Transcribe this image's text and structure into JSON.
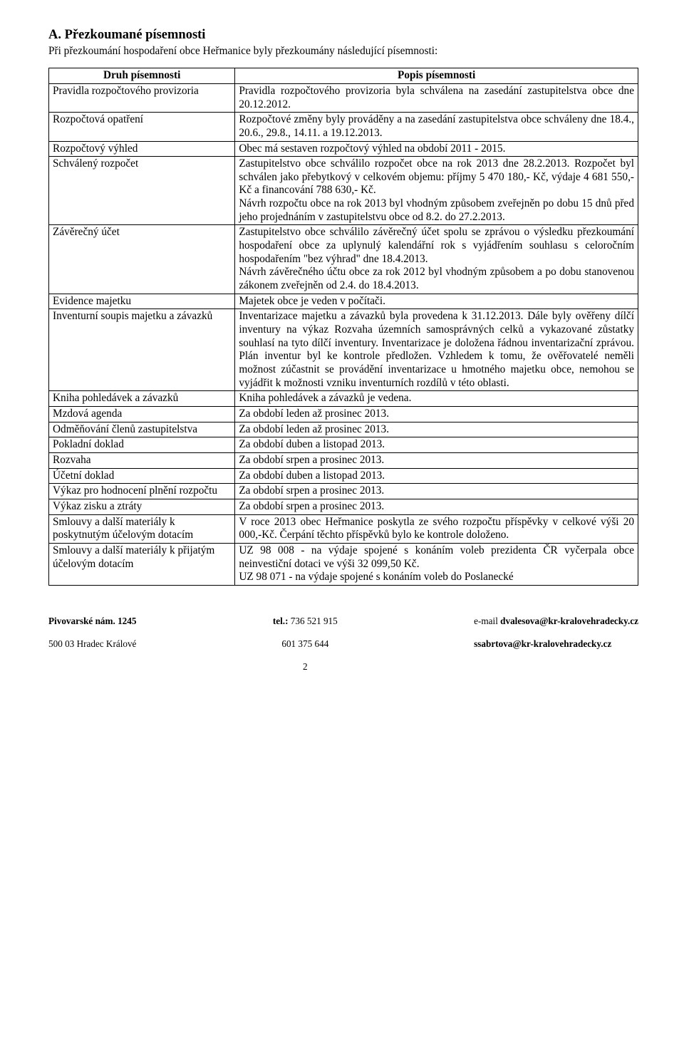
{
  "heading": "A. Přezkoumané písemnosti",
  "intro": "Při přezkoumání hospodaření obce Heřmanice  byly přezkoumány následující písemnosti:",
  "table": {
    "header": {
      "left": "Druh písemnosti",
      "right": "Popis písemnosti"
    },
    "rows": [
      {
        "left": "Pravidla rozpočtového provizoria",
        "right": "Pravidla rozpočtového provizoria byla schválena na zasedání zastupitelstva obce dne 20.12.2012.",
        "justify": true
      },
      {
        "left": "Rozpočtová opatření",
        "right": "Rozpočtové změny byly prováděny a na zasedání zastupitelstva obce schváleny dne 18.4., 20.6., 29.8., 14.11. a 19.12.2013.",
        "justify": true
      },
      {
        "left": "Rozpočtový výhled",
        "right": "Obec má sestaven rozpočtový výhled na období 2011 - 2015."
      },
      {
        "left": "Schválený rozpočet",
        "right": "Zastupitelstvo obce schválilo rozpočet obce na rok 2013 dne 28.2.2013. Rozpočet byl schválen jako přebytkový v celkovém objemu: příjmy 5 470 180,- Kč, výdaje 4 681 550,- Kč a financování 788 630,- Kč.\nNávrh rozpočtu obce na rok 2013 byl vhodným způsobem zveřejněn po dobu 15 dnů před jeho projednáním v zastupitelstvu obce od 8.2. do 27.2.2013.",
        "justify": true
      },
      {
        "left": "Závěrečný účet",
        "right": "Zastupitelstvo obce schválilo závěrečný účet spolu se zprávou o výsledku přezkoumání hospodaření obce za uplynulý kalendářní rok s vyjádřením souhlasu s celoročním hospodařením \"bez výhrad\" dne 18.4.2013.\nNávrh závěrečného účtu obce za rok 2012 byl vhodným způsobem a po dobu stanovenou zákonem zveřejněn od 2.4. do 18.4.2013.",
        "justify": true
      },
      {
        "left": "Evidence majetku",
        "right": "Majetek obce je veden v počítači."
      },
      {
        "left": "Inventurní soupis majetku a závazků",
        "right": "Inventarizace majetku a závazků byla provedena k 31.12.2013. Dále byly ověřeny dílčí inventury na výkaz Rozvaha územních samosprávných celků a vykazované zůstatky souhlasí na tyto dílčí inventury. Inventarizace je doložena řádnou inventarizační zprávou. Plán inventur byl ke kontrole předložen. Vzhledem k tomu, že ověřovatelé neměli možnost zúčastnit se provádění inventarizace u hmotného majetku obce, nemohou se vyjádřit k možnosti vzniku inventurních rozdílů v této oblasti.",
        "justify": true
      },
      {
        "left": "Kniha pohledávek a závazků",
        "right": "Kniha pohledávek a závazků je vedena."
      },
      {
        "left": "Mzdová agenda",
        "right": "Za období leden až prosinec 2013."
      },
      {
        "left": "Odměňování členů zastupitelstva",
        "right": "Za období leden až prosinec 2013."
      },
      {
        "left": "Pokladní doklad",
        "right": "Za období duben a listopad 2013."
      },
      {
        "left": "Rozvaha",
        "right": "Za období srpen a prosinec 2013."
      },
      {
        "left": "Účetní doklad",
        "right": "Za období duben a listopad 2013."
      },
      {
        "left": "Výkaz pro hodnocení plnění rozpočtu",
        "right": "Za období srpen a prosinec 2013."
      },
      {
        "left": "Výkaz zisku a ztráty",
        "right": "Za období srpen a prosinec 2013."
      },
      {
        "left": "Smlouvy a další materiály k poskytnutým účelovým dotacím",
        "right": "V roce 2013 obec Heřmanice poskytla ze svého rozpočtu příspěvky v celkové výši 20 000,-Kč. Čerpání těchto příspěvků bylo ke kontrole doloženo.",
        "justify": true
      },
      {
        "left": "Smlouvy a další materiály k přijatým účelovým dotacím",
        "right": "UZ 98 008 - na výdaje spojené s konáním voleb prezidenta ČR vyčerpala obce neinvestiční dotaci ve výši 32 099,50 Kč.\nUZ 98 071 - na výdaje spojené s konáním voleb do Poslanecké",
        "justify": true
      }
    ]
  },
  "footer": {
    "left_bold": "Pivovarské nám. 1245",
    "left_plain": "500 03 Hradec Králové",
    "mid_bold_label": "tel.:",
    "mid_line1": " 736 521 915",
    "mid_line2": "601 375 644",
    "page_num": "2",
    "right_label1": "e-mail ",
    "right_email1": "dvalesova@kr-kralovehradecky.cz",
    "right_email2": "ssabrtova@kr-kralovehradecky.cz"
  }
}
